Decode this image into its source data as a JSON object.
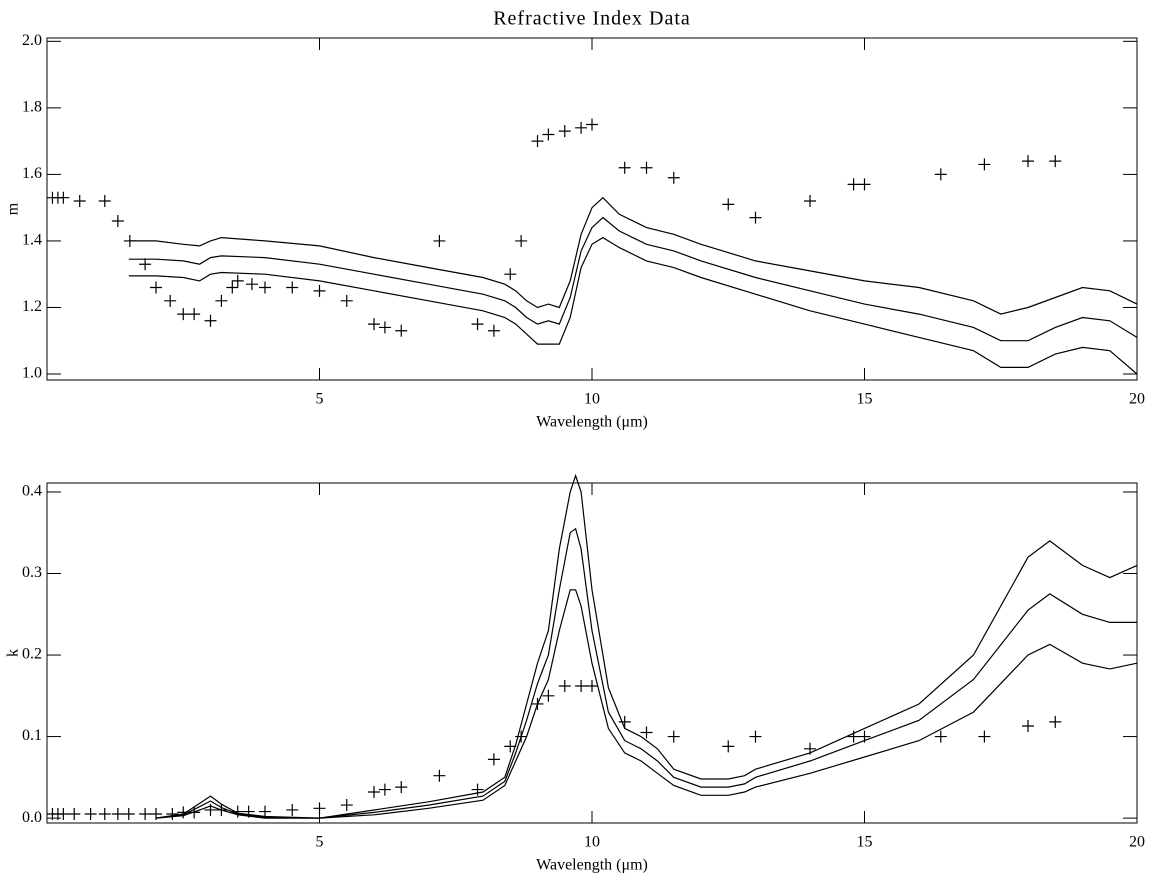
{
  "chart_data": [
    {
      "type": "line",
      "title": "Refractive Index Data",
      "xlabel": "Wavelength (μm)",
      "ylabel": "m",
      "xlim": [
        0,
        20
      ],
      "ylim": [
        0.982,
        2.01
      ],
      "xticks": [
        5,
        10,
        15,
        20
      ],
      "yticks": [
        {
          "value": 1.0,
          "label": "1.0"
        },
        1.2,
        1.4,
        1.6,
        1.8,
        {
          "value": 2.0,
          "label": "2.0"
        }
      ],
      "series": [
        {
          "type": "line",
          "color": "#000000",
          "x": [
            1.5,
            2,
            2.5,
            2.8,
            3,
            3.2,
            4,
            5,
            6,
            7,
            8,
            8.4,
            8.6,
            8.8,
            9,
            9.2,
            9.4,
            9.6,
            9.8,
            10,
            10.2,
            10.5,
            11,
            11.5,
            12,
            13,
            14,
            15,
            16,
            17,
            17.5,
            18,
            18.5,
            19,
            19.5,
            20
          ],
          "values": [
            1.4,
            1.4,
            1.39,
            1.385,
            1.4,
            1.41,
            1.4,
            1.385,
            1.35,
            1.32,
            1.29,
            1.27,
            1.25,
            1.22,
            1.2,
            1.21,
            1.2,
            1.28,
            1.42,
            1.5,
            1.53,
            1.48,
            1.44,
            1.42,
            1.39,
            1.34,
            1.31,
            1.28,
            1.26,
            1.22,
            1.18,
            1.2,
            1.23,
            1.26,
            1.25,
            1.21
          ]
        },
        {
          "type": "line",
          "color": "#000000",
          "x": [
            1.5,
            2,
            2.5,
            2.8,
            3,
            3.2,
            4,
            5,
            6,
            7,
            8,
            8.4,
            8.6,
            8.8,
            9,
            9.2,
            9.4,
            9.6,
            9.8,
            10,
            10.2,
            10.5,
            11,
            11.5,
            12,
            13,
            14,
            15,
            16,
            17,
            17.5,
            18,
            18.5,
            19,
            19.5,
            20
          ],
          "values": [
            1.345,
            1.345,
            1.34,
            1.33,
            1.35,
            1.355,
            1.35,
            1.33,
            1.3,
            1.27,
            1.24,
            1.22,
            1.2,
            1.17,
            1.15,
            1.16,
            1.15,
            1.23,
            1.37,
            1.44,
            1.47,
            1.43,
            1.39,
            1.37,
            1.34,
            1.29,
            1.25,
            1.21,
            1.18,
            1.14,
            1.1,
            1.1,
            1.14,
            1.17,
            1.16,
            1.11
          ]
        },
        {
          "type": "line",
          "color": "#000000",
          "x": [
            1.5,
            2,
            2.5,
            2.8,
            3,
            3.2,
            4,
            5,
            6,
            7,
            8,
            8.4,
            8.6,
            8.8,
            9,
            9.2,
            9.4,
            9.6,
            9.8,
            10,
            10.2,
            10.5,
            11,
            11.5,
            12,
            13,
            14,
            15,
            16,
            17,
            17.5,
            18,
            18.5,
            19,
            19.5,
            20
          ],
          "values": [
            1.295,
            1.295,
            1.29,
            1.28,
            1.3,
            1.305,
            1.3,
            1.28,
            1.25,
            1.22,
            1.19,
            1.17,
            1.15,
            1.12,
            1.09,
            1.09,
            1.09,
            1.17,
            1.32,
            1.39,
            1.41,
            1.38,
            1.34,
            1.32,
            1.29,
            1.24,
            1.19,
            1.15,
            1.11,
            1.07,
            1.02,
            1.02,
            1.06,
            1.08,
            1.07,
            1.0
          ]
        },
        {
          "type": "scatter",
          "marker": "plus",
          "color": "#000000",
          "x": [
            0.1,
            0.2,
            0.3,
            0.6,
            1.06,
            1.3,
            1.52,
            1.8,
            2.0,
            2.26,
            2.5,
            2.7,
            3.0,
            3.2,
            3.4,
            3.5,
            3.76,
            4.0,
            4.5,
            5.0,
            5.5,
            6.0,
            6.2,
            6.5,
            7.2,
            7.9,
            8.2,
            8.5,
            8.7,
            9.0,
            9.2,
            9.5,
            9.8,
            10.0,
            10.6,
            11.0,
            11.5,
            12.5,
            13.0,
            14.0,
            14.8,
            15.0,
            16.4,
            17.2,
            18.0,
            18.5
          ],
          "values": [
            1.53,
            1.53,
            1.53,
            1.52,
            1.52,
            1.46,
            1.4,
            1.33,
            1.26,
            1.22,
            1.18,
            1.18,
            1.16,
            1.22,
            1.26,
            1.28,
            1.27,
            1.26,
            1.26,
            1.25,
            1.22,
            1.15,
            1.14,
            1.13,
            1.4,
            1.15,
            1.13,
            1.3,
            1.4,
            1.7,
            1.72,
            1.73,
            1.74,
            1.75,
            1.62,
            1.62,
            1.59,
            1.51,
            1.47,
            1.52,
            1.57,
            1.57,
            1.6,
            1.63,
            1.64,
            1.64
          ]
        }
      ]
    },
    {
      "type": "line",
      "xlabel": "Wavelength (μm)",
      "ylabel": "k",
      "xlim": [
        0,
        20
      ],
      "ylim": [
        -0.006,
        0.411
      ],
      "xticks": [
        5,
        10,
        15,
        20
      ],
      "yticks": [
        {
          "value": 0,
          "label": "0.0"
        },
        0.1,
        0.2,
        0.3,
        0.4
      ],
      "series": [
        {
          "type": "line",
          "color": "#000000",
          "x": [
            2,
            2.5,
            2.8,
            3,
            3.2,
            3.5,
            4,
            5,
            6,
            7,
            8,
            8.4,
            8.6,
            8.8,
            9,
            9.2,
            9.4,
            9.6,
            9.7,
            9.8,
            10,
            10.3,
            10.6,
            10.9,
            11.2,
            11.5,
            12,
            12.5,
            12.8,
            13,
            14,
            15,
            16,
            17,
            18,
            18.4,
            19,
            19.5,
            20
          ],
          "values": [
            0.0,
            0.005,
            0.018,
            0.027,
            0.017,
            0.006,
            0.002,
            0.0,
            0.01,
            0.02,
            0.032,
            0.05,
            0.09,
            0.14,
            0.19,
            0.23,
            0.33,
            0.4,
            0.42,
            0.4,
            0.28,
            0.16,
            0.11,
            0.1,
            0.085,
            0.06,
            0.048,
            0.048,
            0.052,
            0.06,
            0.08,
            0.11,
            0.14,
            0.2,
            0.32,
            0.34,
            0.31,
            0.295,
            0.31
          ]
        },
        {
          "type": "line",
          "color": "#000000",
          "x": [
            2,
            2.5,
            2.8,
            3,
            3.2,
            3.5,
            4,
            5,
            6,
            7,
            8,
            8.4,
            8.6,
            8.8,
            9,
            9.2,
            9.4,
            9.6,
            9.7,
            9.8,
            10,
            10.3,
            10.6,
            10.9,
            11.2,
            11.5,
            12,
            12.5,
            12.8,
            13,
            14,
            15,
            16,
            17,
            18,
            18.4,
            19,
            19.5,
            20
          ],
          "values": [
            0.0,
            0.004,
            0.014,
            0.021,
            0.013,
            0.005,
            0.001,
            0.0,
            0.007,
            0.016,
            0.027,
            0.045,
            0.08,
            0.12,
            0.165,
            0.2,
            0.28,
            0.35,
            0.355,
            0.33,
            0.23,
            0.13,
            0.095,
            0.085,
            0.07,
            0.05,
            0.038,
            0.038,
            0.042,
            0.05,
            0.07,
            0.095,
            0.12,
            0.17,
            0.255,
            0.275,
            0.25,
            0.24,
            0.24
          ]
        },
        {
          "type": "line",
          "color": "#000000",
          "x": [
            2,
            2.5,
            2.8,
            3,
            3.2,
            3.5,
            4,
            5,
            6,
            7,
            8,
            8.4,
            8.6,
            8.8,
            9,
            9.2,
            9.4,
            9.6,
            9.7,
            9.8,
            10,
            10.3,
            10.6,
            10.9,
            11.2,
            11.5,
            12,
            12.5,
            12.8,
            13,
            14,
            15,
            16,
            17,
            18,
            18.4,
            19,
            19.5,
            20
          ],
          "values": [
            0.0,
            0.003,
            0.01,
            0.015,
            0.01,
            0.004,
            0.0,
            0.0,
            0.004,
            0.012,
            0.022,
            0.04,
            0.07,
            0.1,
            0.14,
            0.17,
            0.23,
            0.28,
            0.28,
            0.26,
            0.19,
            0.11,
            0.08,
            0.07,
            0.055,
            0.04,
            0.028,
            0.028,
            0.032,
            0.038,
            0.055,
            0.075,
            0.095,
            0.13,
            0.2,
            0.213,
            0.19,
            0.183,
            0.19
          ]
        },
        {
          "type": "scatter",
          "marker": "plus",
          "color": "#000000",
          "x": [
            0.1,
            0.2,
            0.3,
            0.5,
            0.8,
            1.06,
            1.3,
            1.5,
            1.8,
            2.0,
            2.3,
            2.5,
            2.7,
            3.0,
            3.2,
            3.5,
            3.7,
            4.0,
            4.5,
            5.0,
            5.5,
            6.0,
            6.2,
            6.5,
            7.2,
            7.9,
            8.2,
            8.5,
            8.7,
            9.0,
            9.2,
            9.5,
            9.8,
            10.0,
            10.6,
            11.0,
            11.5,
            12.5,
            13.0,
            14.0,
            14.8,
            15.0,
            16.4,
            17.2,
            18.0,
            18.5
          ],
          "values": [
            0.005,
            0.005,
            0.005,
            0.005,
            0.005,
            0.005,
            0.005,
            0.005,
            0.005,
            0.005,
            0.005,
            0.007,
            0.007,
            0.01,
            0.01,
            0.008,
            0.008,
            0.008,
            0.01,
            0.012,
            0.016,
            0.032,
            0.035,
            0.038,
            0.052,
            0.035,
            0.072,
            0.088,
            0.1,
            0.14,
            0.15,
            0.162,
            0.162,
            0.162,
            0.118,
            0.105,
            0.1,
            0.088,
            0.1,
            0.085,
            0.1,
            0.1,
            0.1,
            0.1,
            0.113,
            0.118
          ]
        }
      ]
    }
  ]
}
